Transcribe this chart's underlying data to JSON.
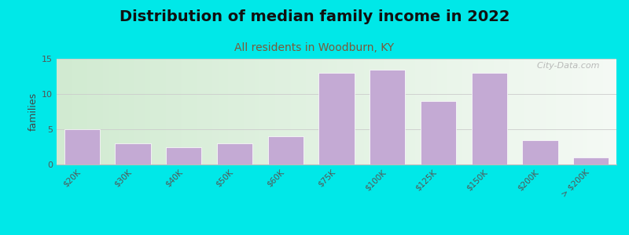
{
  "title": "Distribution of median family income in 2022",
  "subtitle": "All residents in Woodburn, KY",
  "ylabel": "families",
  "categories": [
    "$20K",
    "$30K",
    "$40K",
    "$50K",
    "$60K",
    "$75K",
    "$100K",
    "$125K",
    "$150K",
    "$200K",
    "> $200K"
  ],
  "values": [
    5,
    3,
    2.5,
    3,
    4,
    13,
    13.5,
    9,
    13,
    3.5,
    1
  ],
  "bar_color": "#c4aad4",
  "bar_edgecolor": "#ffffff",
  "background_outer": "#00e8e8",
  "background_left": "#ddeedd",
  "background_right": "#f5f8f5",
  "ylim": [
    0,
    15
  ],
  "yticks": [
    0,
    5,
    10,
    15
  ],
  "title_fontsize": 14,
  "subtitle_fontsize": 10,
  "ylabel_fontsize": 9,
  "watermark": "  City-Data.com"
}
